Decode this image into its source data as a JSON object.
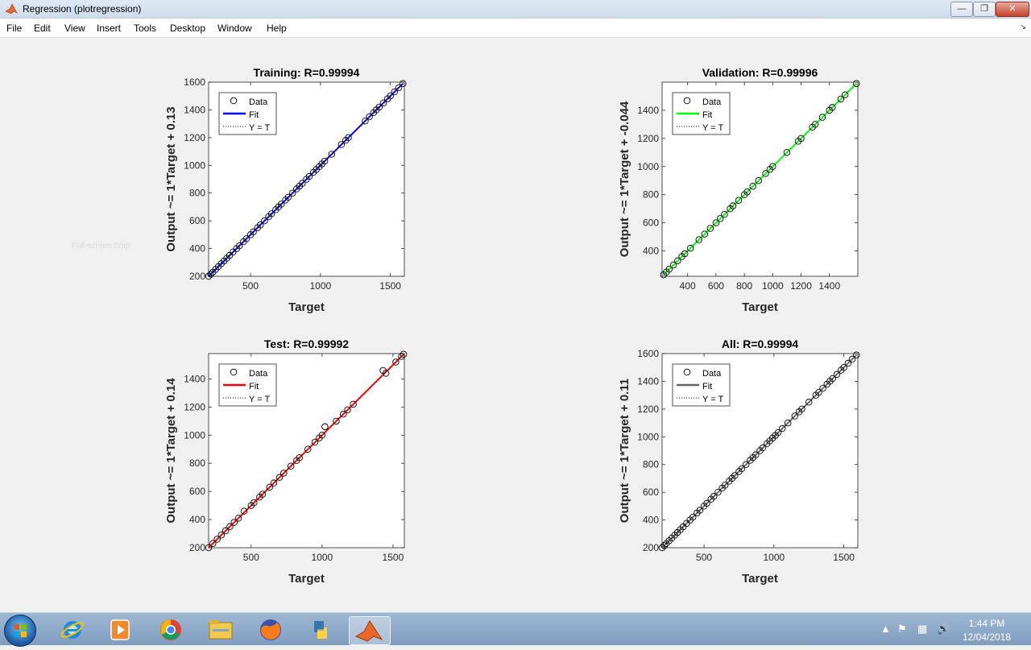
{
  "window": {
    "title": "Regression (plotregression)",
    "minimize_icon": "minimize-icon",
    "restore_icon": "restore-icon",
    "close_icon": "close-icon"
  },
  "menu": {
    "items": [
      "File",
      "Edit",
      "View",
      "Insert",
      "Tools",
      "Desktop",
      "Window",
      "Help"
    ]
  },
  "watermark": "Full-screen Snip",
  "legend": {
    "data": "Data",
    "fit": "Fit",
    "yt": "Y = T"
  },
  "chart_data": [
    {
      "type": "scatter",
      "title": "Training: R=0.99994",
      "xlabel": "Target",
      "ylabel": "Output ~= 1*Target + 0.13",
      "fit_color": "#0000ff",
      "xlim": [
        200,
        1600
      ],
      "ylim": [
        200,
        1600
      ],
      "xticks": [
        500,
        1000,
        1500
      ],
      "yticks": [
        200,
        400,
        600,
        800,
        1000,
        1200,
        1400,
        1600
      ],
      "x": [
        200,
        215,
        230,
        250,
        270,
        290,
        310,
        330,
        350,
        375,
        400,
        420,
        450,
        470,
        500,
        520,
        550,
        570,
        600,
        630,
        650,
        680,
        700,
        720,
        750,
        770,
        800,
        830,
        850,
        870,
        900,
        920,
        950,
        970,
        990,
        1010,
        1030,
        1080,
        1150,
        1180,
        1200,
        1320,
        1350,
        1380,
        1400,
        1420,
        1450,
        1480,
        1500,
        1530,
        1560,
        1590
      ],
      "y": [
        200,
        215,
        230,
        250,
        270,
        290,
        310,
        330,
        350,
        375,
        400,
        420,
        450,
        470,
        500,
        520,
        550,
        570,
        600,
        630,
        650,
        680,
        700,
        720,
        750,
        770,
        800,
        830,
        850,
        870,
        900,
        920,
        950,
        970,
        990,
        1010,
        1030,
        1080,
        1150,
        1180,
        1200,
        1320,
        1350,
        1380,
        1400,
        1420,
        1450,
        1480,
        1500,
        1530,
        1560,
        1590
      ]
    },
    {
      "type": "scatter",
      "title": "Validation: R=0.99996",
      "xlabel": "Target",
      "ylabel": "Output ~= 1*Target + -0.044",
      "fit_color": "#00ff00",
      "xlim": [
        220,
        1600
      ],
      "ylim": [
        220,
        1600
      ],
      "xticks": [
        400,
        600,
        800,
        1000,
        1200,
        1400
      ],
      "yticks": [
        400,
        600,
        800,
        1000,
        1200,
        1400
      ],
      "x": [
        230,
        250,
        270,
        300,
        330,
        360,
        380,
        420,
        480,
        520,
        560,
        600,
        630,
        660,
        700,
        720,
        760,
        800,
        820,
        860,
        900,
        950,
        980,
        1000,
        1100,
        1180,
        1200,
        1280,
        1300,
        1350,
        1400,
        1420,
        1480,
        1510,
        1590
      ],
      "y": [
        230,
        250,
        270,
        300,
        330,
        360,
        380,
        420,
        480,
        520,
        560,
        600,
        630,
        660,
        700,
        720,
        760,
        800,
        820,
        860,
        900,
        950,
        980,
        1000,
        1100,
        1180,
        1200,
        1280,
        1300,
        1350,
        1400,
        1420,
        1480,
        1510,
        1590
      ]
    },
    {
      "type": "scatter",
      "title": "Test: R=0.99992",
      "xlabel": "Target",
      "ylabel": "Output ~= 1*Target + 0.14",
      "fit_color": "#ff0000",
      "xlim": [
        200,
        1580
      ],
      "ylim": [
        200,
        1580
      ],
      "xticks": [
        500,
        1000,
        1500
      ],
      "yticks": [
        200,
        400,
        600,
        800,
        1000,
        1200,
        1400
      ],
      "x": [
        200,
        230,
        260,
        290,
        320,
        350,
        380,
        410,
        450,
        500,
        520,
        560,
        580,
        630,
        660,
        700,
        730,
        780,
        820,
        840,
        900,
        950,
        980,
        1000,
        1020,
        1100,
        1150,
        1180,
        1220,
        1430,
        1450,
        1520,
        1560,
        1575
      ],
      "y": [
        200,
        230,
        260,
        290,
        320,
        350,
        380,
        410,
        460,
        500,
        520,
        560,
        580,
        630,
        660,
        700,
        730,
        780,
        820,
        840,
        900,
        950,
        980,
        1000,
        1060,
        1100,
        1150,
        1180,
        1220,
        1460,
        1440,
        1520,
        1560,
        1575
      ]
    },
    {
      "type": "scatter",
      "title": "All: R=0.99994",
      "xlabel": "Target",
      "ylabel": "Output ~= 1*Target + 0.11",
      "fit_color": "#666666",
      "xlim": [
        200,
        1600
      ],
      "ylim": [
        200,
        1600
      ],
      "xticks": [
        500,
        1000,
        1500
      ],
      "yticks": [
        200,
        400,
        600,
        800,
        1000,
        1200,
        1400,
        1600
      ],
      "x": [
        200,
        215,
        230,
        250,
        270,
        290,
        310,
        330,
        350,
        375,
        400,
        420,
        450,
        470,
        500,
        520,
        550,
        570,
        600,
        630,
        650,
        680,
        700,
        720,
        750,
        770,
        800,
        830,
        850,
        870,
        900,
        920,
        950,
        970,
        990,
        1010,
        1030,
        1060,
        1100,
        1150,
        1180,
        1200,
        1250,
        1300,
        1320,
        1350,
        1380,
        1400,
        1420,
        1450,
        1480,
        1500,
        1530,
        1560,
        1590
      ],
      "y": [
        200,
        215,
        230,
        250,
        270,
        290,
        310,
        330,
        350,
        375,
        400,
        420,
        450,
        470,
        500,
        520,
        550,
        570,
        600,
        630,
        650,
        680,
        700,
        720,
        750,
        770,
        800,
        830,
        850,
        870,
        900,
        920,
        950,
        970,
        990,
        1010,
        1030,
        1060,
        1100,
        1150,
        1180,
        1200,
        1250,
        1300,
        1320,
        1350,
        1380,
        1400,
        1420,
        1450,
        1480,
        1500,
        1530,
        1560,
        1590
      ]
    }
  ],
  "taskbar": {
    "start_icon": "windows-start-icon",
    "apps": [
      "windows-media-player-icon",
      "internet-explorer-icon",
      "chrome-icon",
      "file-explorer-icon",
      "firefox-icon",
      "python-icon",
      "matlab-icon"
    ],
    "clock_time": "1:44 PM",
    "clock_date": "12/04/2018"
  }
}
